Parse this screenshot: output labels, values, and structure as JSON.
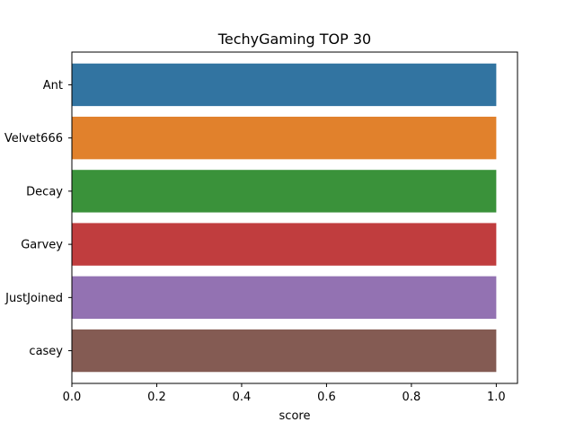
{
  "chart_data": {
    "type": "bar",
    "orientation": "horizontal",
    "title": "TechyGaming TOP 30",
    "xlabel": "score",
    "ylabel": "",
    "categories": [
      "Ant",
      "Velvet666",
      "Decay",
      "Garvey",
      "JustJoined",
      "casey"
    ],
    "values": [
      1.0,
      1.0,
      1.0,
      1.0,
      1.0,
      1.0
    ],
    "xlim": [
      0,
      1.05
    ],
    "xticks": [
      0.0,
      0.2,
      0.4,
      0.6,
      0.8,
      1.0
    ],
    "xtick_labels": [
      "0.0",
      "0.2",
      "0.4",
      "0.6",
      "0.8",
      "1.0"
    ],
    "colors": [
      "#3274a1",
      "#e1812c",
      "#3a923a",
      "#c03d3e",
      "#9372b2",
      "#845b53"
    ],
    "grid": false,
    "legend": "none"
  }
}
